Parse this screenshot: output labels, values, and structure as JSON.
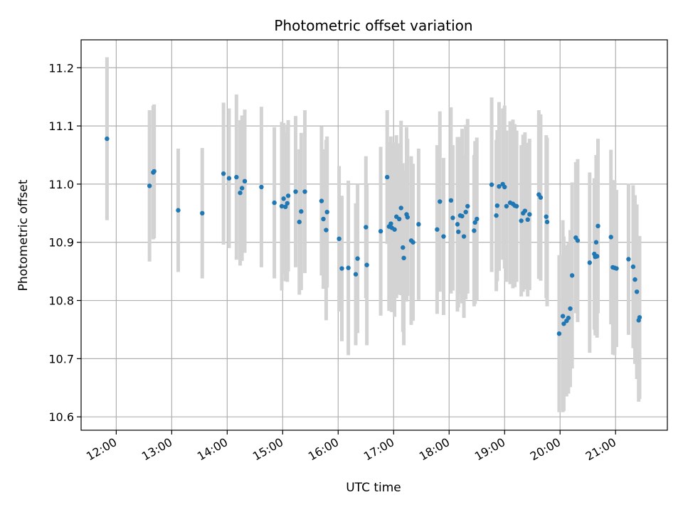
{
  "chart_data": {
    "type": "scatter",
    "title": "Photometric offset variation",
    "xlabel": "UTC time",
    "ylabel": "Photometric offset",
    "x_ticks": [
      "12:00",
      "13:00",
      "14:00",
      "15:00",
      "16:00",
      "17:00",
      "18:00",
      "19:00",
      "20:00",
      "21:00"
    ],
    "y_ticks": [
      "10.6",
      "10.7",
      "10.8",
      "10.9",
      "11.0",
      "11.1",
      "11.2"
    ],
    "xlim": [
      "11:22",
      "21:56"
    ],
    "ylim": [
      10.577,
      11.248
    ],
    "grid": true,
    "colors": {
      "points": "#1f77b4",
      "errorbars": "#d3d3d3",
      "grid": "#b0b0b0"
    },
    "points": [
      [
        "11:50",
        11.078,
        0.14
      ],
      [
        "12:36",
        10.997,
        0.13
      ],
      [
        "12:40",
        11.02,
        0.115
      ],
      [
        "12:41",
        11.022,
        0.115
      ],
      [
        "13:07",
        10.955,
        0.106
      ],
      [
        "13:33",
        10.95,
        0.112
      ],
      [
        "13:56",
        11.018,
        0.122
      ],
      [
        "14:02",
        11.01,
        0.12
      ],
      [
        "14:10",
        11.012,
        0.142
      ],
      [
        "14:14",
        10.985,
        0.125
      ],
      [
        "14:16",
        10.993,
        0.125
      ],
      [
        "14:19",
        11.005,
        0.123
      ],
      [
        "14:37",
        10.995,
        0.138
      ],
      [
        "14:51",
        10.968,
        0.13
      ],
      [
        "14:59",
        10.962,
        0.145
      ],
      [
        "15:01",
        10.975,
        0.13
      ],
      [
        "15:03",
        10.961,
        0.128
      ],
      [
        "15:05",
        10.967,
        0.135
      ],
      [
        "15:06",
        10.98,
        0.13
      ],
      [
        "15:14",
        10.987,
        0.13
      ],
      [
        "15:18",
        10.935,
        0.125
      ],
      [
        "15:20",
        10.953,
        0.135
      ],
      [
        "15:24",
        10.987,
        0.14
      ],
      [
        "15:42",
        10.971,
        0.128
      ],
      [
        "15:44",
        10.94,
        0.12
      ],
      [
        "15:47",
        10.921,
        0.155
      ],
      [
        "15:48",
        10.952,
        0.13
      ],
      [
        "16:01",
        10.906,
        0.125
      ],
      [
        "16:04",
        10.855,
        0.125
      ],
      [
        "16:11",
        10.856,
        0.15
      ],
      [
        "16:19",
        10.845,
        0.122
      ],
      [
        "16:21",
        10.872,
        0.128
      ],
      [
        "16:30",
        10.926,
        0.122
      ],
      [
        "16:31",
        10.861,
        0.138
      ],
      [
        "16:46",
        10.919,
        0.145
      ],
      [
        "16:53",
        11.012,
        0.115
      ],
      [
        "16:55",
        10.927,
        0.145
      ],
      [
        "16:57",
        10.932,
        0.15
      ],
      [
        "16:58",
        10.925,
        0.145
      ],
      [
        "17:01",
        10.922,
        0.15
      ],
      [
        "17:03",
        10.944,
        0.14
      ],
      [
        "17:06",
        10.94,
        0.13
      ],
      [
        "17:08",
        10.959,
        0.15
      ],
      [
        "17:10",
        10.891,
        0.145
      ],
      [
        "17:11",
        10.873,
        0.15
      ],
      [
        "17:14",
        10.948,
        0.15
      ],
      [
        "17:15",
        10.943,
        0.135
      ],
      [
        "17:19",
        10.903,
        0.145
      ],
      [
        "17:21",
        10.9,
        0.135
      ],
      [
        "17:27",
        10.931,
        0.13
      ],
      [
        "17:47",
        10.922,
        0.145
      ],
      [
        "17:50",
        10.97,
        0.155
      ],
      [
        "17:54",
        10.91,
        0.135
      ],
      [
        "18:02",
        10.972,
        0.16
      ],
      [
        "18:04",
        10.942,
        0.125
      ],
      [
        "18:09",
        10.931,
        0.15
      ],
      [
        "18:10",
        10.918,
        0.13
      ],
      [
        "18:12",
        10.946,
        0.135
      ],
      [
        "18:14",
        10.945,
        0.15
      ],
      [
        "18:16",
        10.91,
        0.14
      ],
      [
        "18:18",
        10.952,
        0.15
      ],
      [
        "18:20",
        10.962,
        0.15
      ],
      [
        "18:27",
        10.92,
        0.13
      ],
      [
        "18:28",
        10.934,
        0.14
      ],
      [
        "18:30",
        10.94,
        0.14
      ],
      [
        "18:46",
        10.999,
        0.15
      ],
      [
        "18:51",
        10.946,
        0.13
      ],
      [
        "18:52",
        10.963,
        0.13
      ],
      [
        "18:54",
        10.996,
        0.145
      ],
      [
        "18:58",
        11.0,
        0.13
      ],
      [
        "19:00",
        10.995,
        0.14
      ],
      [
        "19:02",
        10.962,
        0.13
      ],
      [
        "19:06",
        10.968,
        0.14
      ],
      [
        "19:09",
        10.966,
        0.145
      ],
      [
        "19:11",
        10.963,
        0.14
      ],
      [
        "19:13",
        10.962,
        0.13
      ],
      [
        "19:18",
        10.937,
        0.13
      ],
      [
        "19:20",
        10.95,
        0.135
      ],
      [
        "19:22",
        10.954,
        0.135
      ],
      [
        "19:25",
        10.939,
        0.132
      ],
      [
        "19:27",
        10.948,
        0.13
      ],
      [
        "19:37",
        10.982,
        0.145
      ],
      [
        "19:39",
        10.977,
        0.143
      ],
      [
        "19:45",
        10.944,
        0.14
      ],
      [
        "19:46",
        10.935,
        0.145
      ],
      [
        "19:59",
        10.743,
        0.135
      ],
      [
        "20:03",
        10.773,
        0.165
      ],
      [
        "20:04",
        10.76,
        0.15
      ],
      [
        "20:07",
        10.765,
        0.13
      ],
      [
        "20:09",
        10.77,
        0.13
      ],
      [
        "20:11",
        10.786,
        0.135
      ],
      [
        "20:13",
        10.843,
        0.16
      ],
      [
        "20:17",
        10.908,
        0.13
      ],
      [
        "20:19",
        10.903,
        0.14
      ],
      [
        "20:32",
        10.865,
        0.155
      ],
      [
        "20:37",
        10.88,
        0.13
      ],
      [
        "20:38",
        10.875,
        0.135
      ],
      [
        "20:39",
        10.9,
        0.15
      ],
      [
        "20:40",
        10.876,
        0.14
      ],
      [
        "20:41",
        10.928,
        0.15
      ],
      [
        "20:55",
        10.909,
        0.15
      ],
      [
        "20:57",
        10.857,
        0.15
      ],
      [
        "20:59",
        10.856,
        0.15
      ],
      [
        "21:01",
        10.855,
        0.135
      ],
      [
        "21:14",
        10.871,
        0.13
      ],
      [
        "21:19",
        10.858,
        0.14
      ],
      [
        "21:21",
        10.836,
        0.145
      ],
      [
        "21:23",
        10.815,
        0.15
      ],
      [
        "21:25",
        10.766,
        0.14
      ],
      [
        "21:26",
        10.771,
        0.14
      ]
    ]
  }
}
